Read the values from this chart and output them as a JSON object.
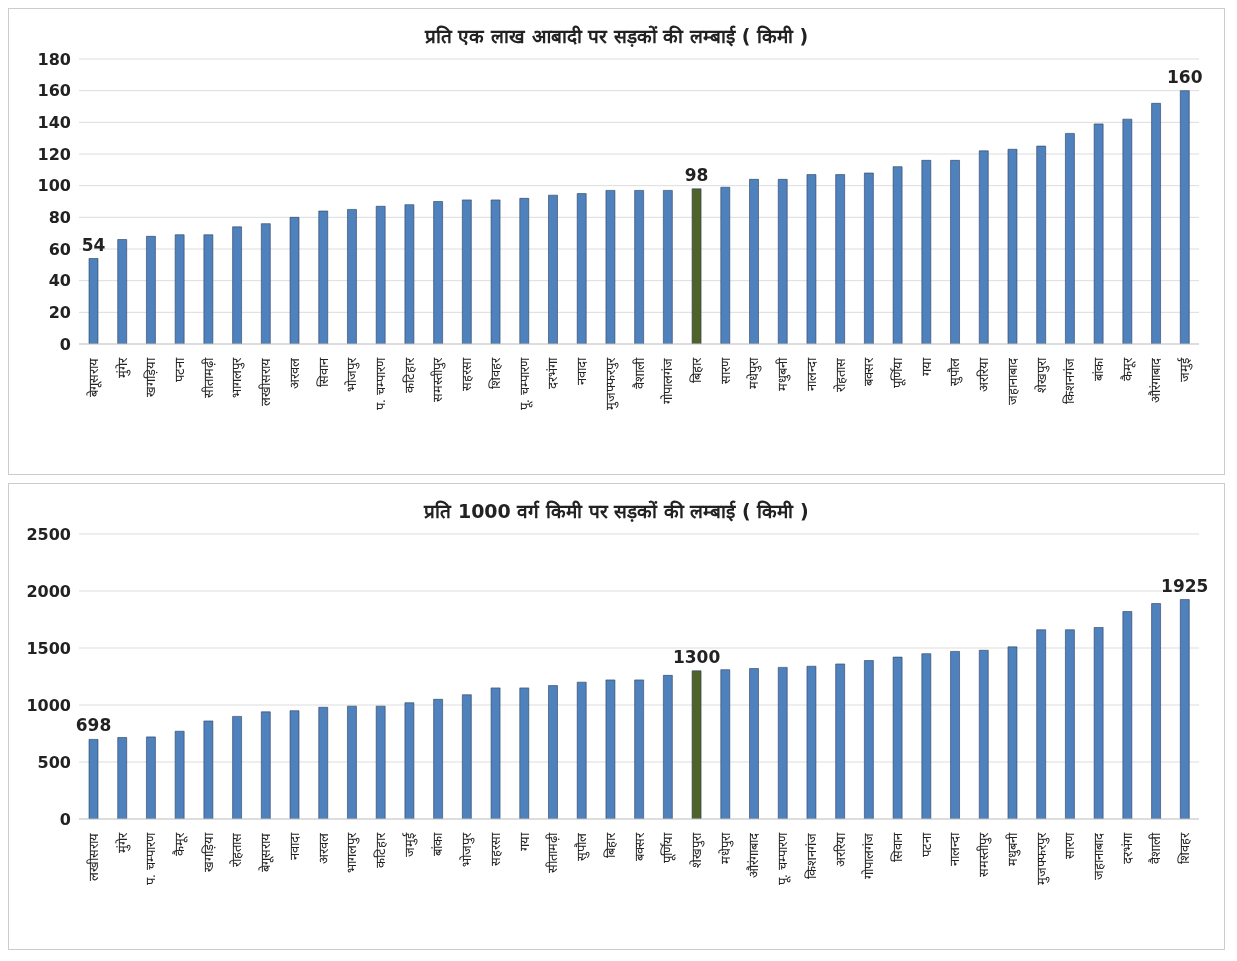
{
  "chart_data": [
    {
      "type": "bar",
      "title": "प्रति एक लाख आबादी पर सड़कों की लम्बाई ( किमी )",
      "categories": [
        "बेगूसराय",
        "मुंगेर",
        "खगड़िया",
        "पटना",
        "सीतामढ़ी",
        "भागलपुर",
        "लखीसराय",
        "अरवल",
        "सिवान",
        "भोजपुर",
        "प. चम्पारण",
        "कटिहार",
        "समस्तीपुर",
        "सहरसा",
        "शिवहर",
        "पू. चम्पारण",
        "दरभंगा",
        "नवादा",
        "मुजफ्फरपुर",
        "वैशाली",
        "गोपालगंज",
        "बिहार",
        "सारण",
        "मधेपुरा",
        "मधुबनी",
        "नालन्दा",
        "रोहतास",
        "बक्सर",
        "पूर्णिया",
        "गया",
        "सुपौल",
        "अररिया",
        "जहानाबाद",
        "शेखपुरा",
        "किशनगंज",
        "बांका",
        "कैमूर",
        "औरंगाबाद",
        "जमुई"
      ],
      "values": [
        54,
        66,
        68,
        69,
        69,
        74,
        76,
        80,
        84,
        85,
        87,
        88,
        90,
        91,
        91,
        92,
        94,
        95,
        97,
        97,
        97,
        98,
        99,
        104,
        104,
        107,
        107,
        108,
        112,
        116,
        116,
        122,
        123,
        125,
        133,
        139,
        142,
        152,
        160
      ],
      "colors": [
        "#4f81bd",
        "#4f81bd",
        "#4f81bd",
        "#4f81bd",
        "#4f81bd",
        "#4f81bd",
        "#4f81bd",
        "#4f81bd",
        "#4f81bd",
        "#4f81bd",
        "#4f81bd",
        "#4f81bd",
        "#4f81bd",
        "#4f81bd",
        "#4f81bd",
        "#4f81bd",
        "#4f81bd",
        "#4f81bd",
        "#4f81bd",
        "#4f81bd",
        "#4f81bd",
        "#4f6228",
        "#4f81bd",
        "#4f81bd",
        "#4f81bd",
        "#4f81bd",
        "#4f81bd",
        "#4f81bd",
        "#4f81bd",
        "#4f81bd",
        "#4f81bd",
        "#4f81bd",
        "#4f81bd",
        "#4f81bd",
        "#4f81bd",
        "#4f81bd",
        "#4f81bd",
        "#4f81bd",
        "#4f81bd"
      ],
      "value_labels": [
        "54",
        null,
        null,
        null,
        null,
        null,
        null,
        null,
        null,
        null,
        null,
        null,
        null,
        null,
        null,
        null,
        null,
        null,
        null,
        null,
        null,
        "98",
        null,
        null,
        null,
        null,
        null,
        null,
        null,
        null,
        null,
        null,
        null,
        null,
        null,
        null,
        null,
        null,
        "160"
      ],
      "ylim": [
        0,
        180
      ],
      "yticks": [
        0,
        20,
        40,
        60,
        80,
        100,
        120,
        140,
        160,
        180
      ],
      "grid": "y",
      "legend": false
    },
    {
      "type": "bar",
      "title": "प्रति 1000 वर्ग किमी पर सड़कों की लम्बाई ( किमी )",
      "categories": [
        "लखीसराय",
        "मुंगेर",
        "प. चम्पारण",
        "कैमूर",
        "खगड़िया",
        "रोहतास",
        "बेगूसराय",
        "नवादा",
        "अरवल",
        "भागलपुर",
        "कटिहार",
        "जमुई",
        "बांका",
        "भोजपुर",
        "सहरसा",
        "गया",
        "सीतामढ़ी",
        "सुपौल",
        "बिहार",
        "बक्सर",
        "पूर्णिया",
        "शेखपुरा",
        "मधेपुरा",
        "औरंगाबाद",
        "पू. चम्पारण",
        "किशनगंज",
        "अररिया",
        "गोपालगंज",
        "सिवान",
        "पटना",
        "नालन्दा",
        "समस्तीपुर",
        "मधुबनी",
        "मुजफ्फरपुर",
        "सारण",
        "जहानाबाद",
        "दरभंगा",
        "वैशाली",
        "शिवहर"
      ],
      "values": [
        698,
        715,
        720,
        770,
        860,
        900,
        940,
        950,
        980,
        990,
        990,
        1020,
        1050,
        1090,
        1150,
        1150,
        1170,
        1200,
        1220,
        1220,
        1260,
        1300,
        1310,
        1320,
        1330,
        1340,
        1360,
        1390,
        1420,
        1450,
        1470,
        1480,
        1510,
        1660,
        1660,
        1680,
        1820,
        1890,
        1925
      ],
      "colors": [
        "#4f81bd",
        "#4f81bd",
        "#4f81bd",
        "#4f81bd",
        "#4f81bd",
        "#4f81bd",
        "#4f81bd",
        "#4f81bd",
        "#4f81bd",
        "#4f81bd",
        "#4f81bd",
        "#4f81bd",
        "#4f81bd",
        "#4f81bd",
        "#4f81bd",
        "#4f81bd",
        "#4f81bd",
        "#4f81bd",
        "#4f81bd",
        "#4f81bd",
        "#4f81bd",
        "#4f6228",
        "#4f81bd",
        "#4f81bd",
        "#4f81bd",
        "#4f81bd",
        "#4f81bd",
        "#4f81bd",
        "#4f81bd",
        "#4f81bd",
        "#4f81bd",
        "#4f81bd",
        "#4f81bd",
        "#4f81bd",
        "#4f81bd",
        "#4f81bd",
        "#4f81bd",
        "#4f81bd",
        "#4f81bd"
      ],
      "value_labels": [
        "698",
        null,
        null,
        null,
        null,
        null,
        null,
        null,
        null,
        null,
        null,
        null,
        null,
        null,
        null,
        null,
        null,
        null,
        null,
        null,
        null,
        "1300",
        null,
        null,
        null,
        null,
        null,
        null,
        null,
        null,
        null,
        null,
        null,
        null,
        null,
        null,
        null,
        null,
        "1925"
      ],
      "ylim": [
        0,
        2500
      ],
      "yticks": [
        0,
        500,
        1000,
        1500,
        2000,
        2500
      ],
      "grid": "y",
      "legend": false
    }
  ]
}
